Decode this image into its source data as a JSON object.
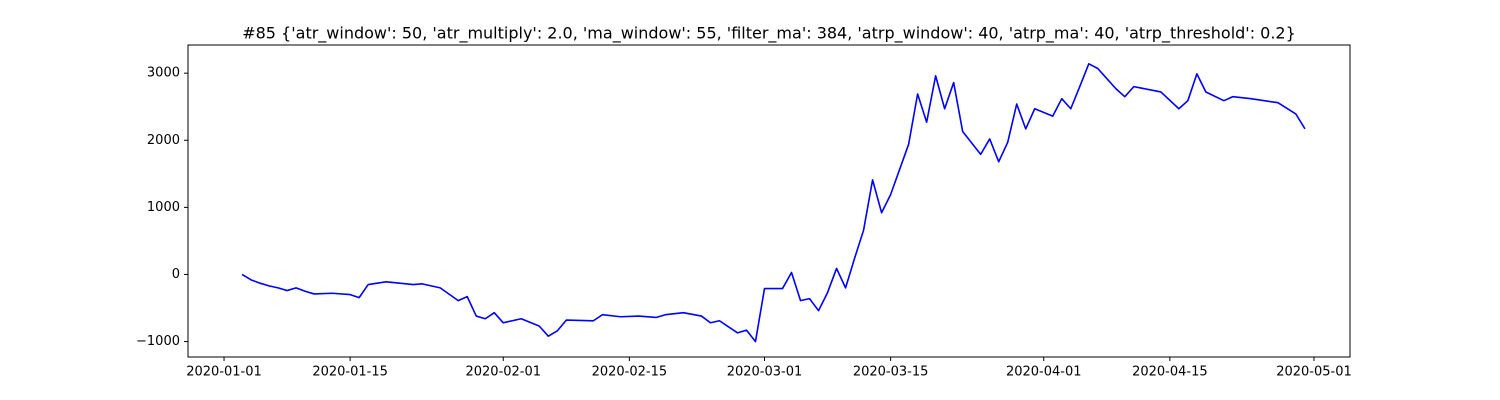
{
  "chart_data": {
    "type": "line",
    "title": "#85 {'atr_window': 50, 'atr_multiply': 2.0, 'ma_window': 55, 'filter_ma': 384, 'atrp_window': 40, 'atrp_ma': 40, 'atrp_threshold': 0.2}",
    "x": [
      "2020-01-03",
      "2020-01-04",
      "2020-01-05",
      "2020-01-06",
      "2020-01-07",
      "2020-01-08",
      "2020-01-09",
      "2020-01-10",
      "2020-01-11",
      "2020-01-13",
      "2020-01-15",
      "2020-01-16",
      "2020-01-17",
      "2020-01-18",
      "2020-01-19",
      "2020-01-22",
      "2020-01-23",
      "2020-01-24",
      "2020-01-25",
      "2020-01-27",
      "2020-01-28",
      "2020-01-29",
      "2020-01-30",
      "2020-01-31",
      "2020-02-01",
      "2020-02-03",
      "2020-02-05",
      "2020-02-06",
      "2020-02-07",
      "2020-02-08",
      "2020-02-11",
      "2020-02-12",
      "2020-02-14",
      "2020-02-16",
      "2020-02-18",
      "2020-02-19",
      "2020-02-21",
      "2020-02-23",
      "2020-02-24",
      "2020-02-25",
      "2020-02-26",
      "2020-02-27",
      "2020-02-28",
      "2020-02-29",
      "2020-03-01",
      "2020-03-03",
      "2020-03-04",
      "2020-03-05",
      "2020-03-06",
      "2020-03-07",
      "2020-03-08",
      "2020-03-09",
      "2020-03-10",
      "2020-03-11",
      "2020-03-12",
      "2020-03-13",
      "2020-03-14",
      "2020-03-15",
      "2020-03-17",
      "2020-03-18",
      "2020-03-19",
      "2020-03-20",
      "2020-03-21",
      "2020-03-22",
      "2020-03-23",
      "2020-03-25",
      "2020-03-26",
      "2020-03-27",
      "2020-03-28",
      "2020-03-29",
      "2020-03-30",
      "2020-03-31",
      "2020-04-02",
      "2020-04-03",
      "2020-04-04",
      "2020-04-05",
      "2020-04-06",
      "2020-04-07",
      "2020-04-08",
      "2020-04-09",
      "2020-04-10",
      "2020-04-11",
      "2020-04-14",
      "2020-04-16",
      "2020-04-17",
      "2020-04-18",
      "2020-04-19",
      "2020-04-21",
      "2020-04-22",
      "2020-04-24",
      "2020-04-27",
      "2020-04-29",
      "2020-04-30"
    ],
    "series": [
      {
        "color": "#0000ff",
        "values": [
          0,
          -80,
          -130,
          -170,
          -200,
          -240,
          -200,
          -250,
          -290,
          -280,
          -300,
          -345,
          -150,
          -130,
          -110,
          -150,
          -140,
          -170,
          -200,
          -390,
          -330,
          -620,
          -660,
          -570,
          -720,
          -660,
          -770,
          -920,
          -840,
          -680,
          -690,
          -600,
          -630,
          -620,
          -640,
          -600,
          -570,
          -620,
          -720,
          -690,
          -780,
          -870,
          -830,
          -1000,
          -210,
          -210,
          30,
          -390,
          -360,
          -540,
          -270,
          90,
          -200,
          240,
          660,
          1410,
          920,
          1190,
          1940,
          2690,
          2270,
          2960,
          2470,
          2860,
          2130,
          1790,
          2020,
          1680,
          1970,
          2540,
          2170,
          2470,
          2360,
          2620,
          2470,
          2800,
          3140,
          3070,
          2920,
          2770,
          2650,
          2800,
          2720,
          2470,
          2590,
          2990,
          2720,
          2590,
          2650,
          2620,
          2560,
          2390,
          2170
        ]
      }
    ],
    "xlim": [
      "2019-12-28",
      "2020-05-05"
    ],
    "xticks": [
      "2020-01-01",
      "2020-01-15",
      "2020-02-01",
      "2020-02-15",
      "2020-03-01",
      "2020-03-15",
      "2020-04-01",
      "2020-04-15",
      "2020-05-01"
    ],
    "ylim": [
      -1230,
      3420
    ],
    "yticks": [
      {
        "value": -1000,
        "label": "−1000"
      },
      0,
      1000,
      2000,
      3000
    ]
  }
}
